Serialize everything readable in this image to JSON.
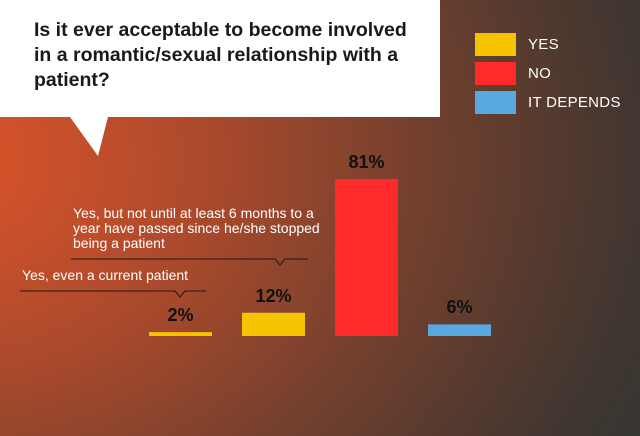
{
  "chart_data": {
    "type": "bar",
    "title": "Is it ever acceptable to become involved in a romantic/sexual relationship with a patient?",
    "ylabel": "",
    "xlabel": "",
    "ylim": [
      0,
      100
    ],
    "grid": false,
    "legend_placement": "top-right",
    "legend": [
      {
        "label": "YES",
        "color": "#f5c400"
      },
      {
        "label": "NO",
        "color": "#ff2a2a"
      },
      {
        "label": "IT DEPENDS",
        "color": "#5aa8e0"
      }
    ],
    "bars": [
      {
        "value": 2,
        "label": "2%",
        "color": "#f5c400",
        "group": "YES",
        "annotation": "Yes, even a current patient"
      },
      {
        "value": 12,
        "label": "12%",
        "color": "#f5c400",
        "group": "YES",
        "annotation": "Yes, but not until at least 6 months to a year have passed since he/she stopped being a patient"
      },
      {
        "value": 81,
        "label": "81%",
        "color": "#ff2a2a",
        "group": "NO",
        "annotation": ""
      },
      {
        "value": 6,
        "label": "6%",
        "color": "#5aa8e0",
        "group": "IT DEPENDS",
        "annotation": ""
      }
    ]
  }
}
